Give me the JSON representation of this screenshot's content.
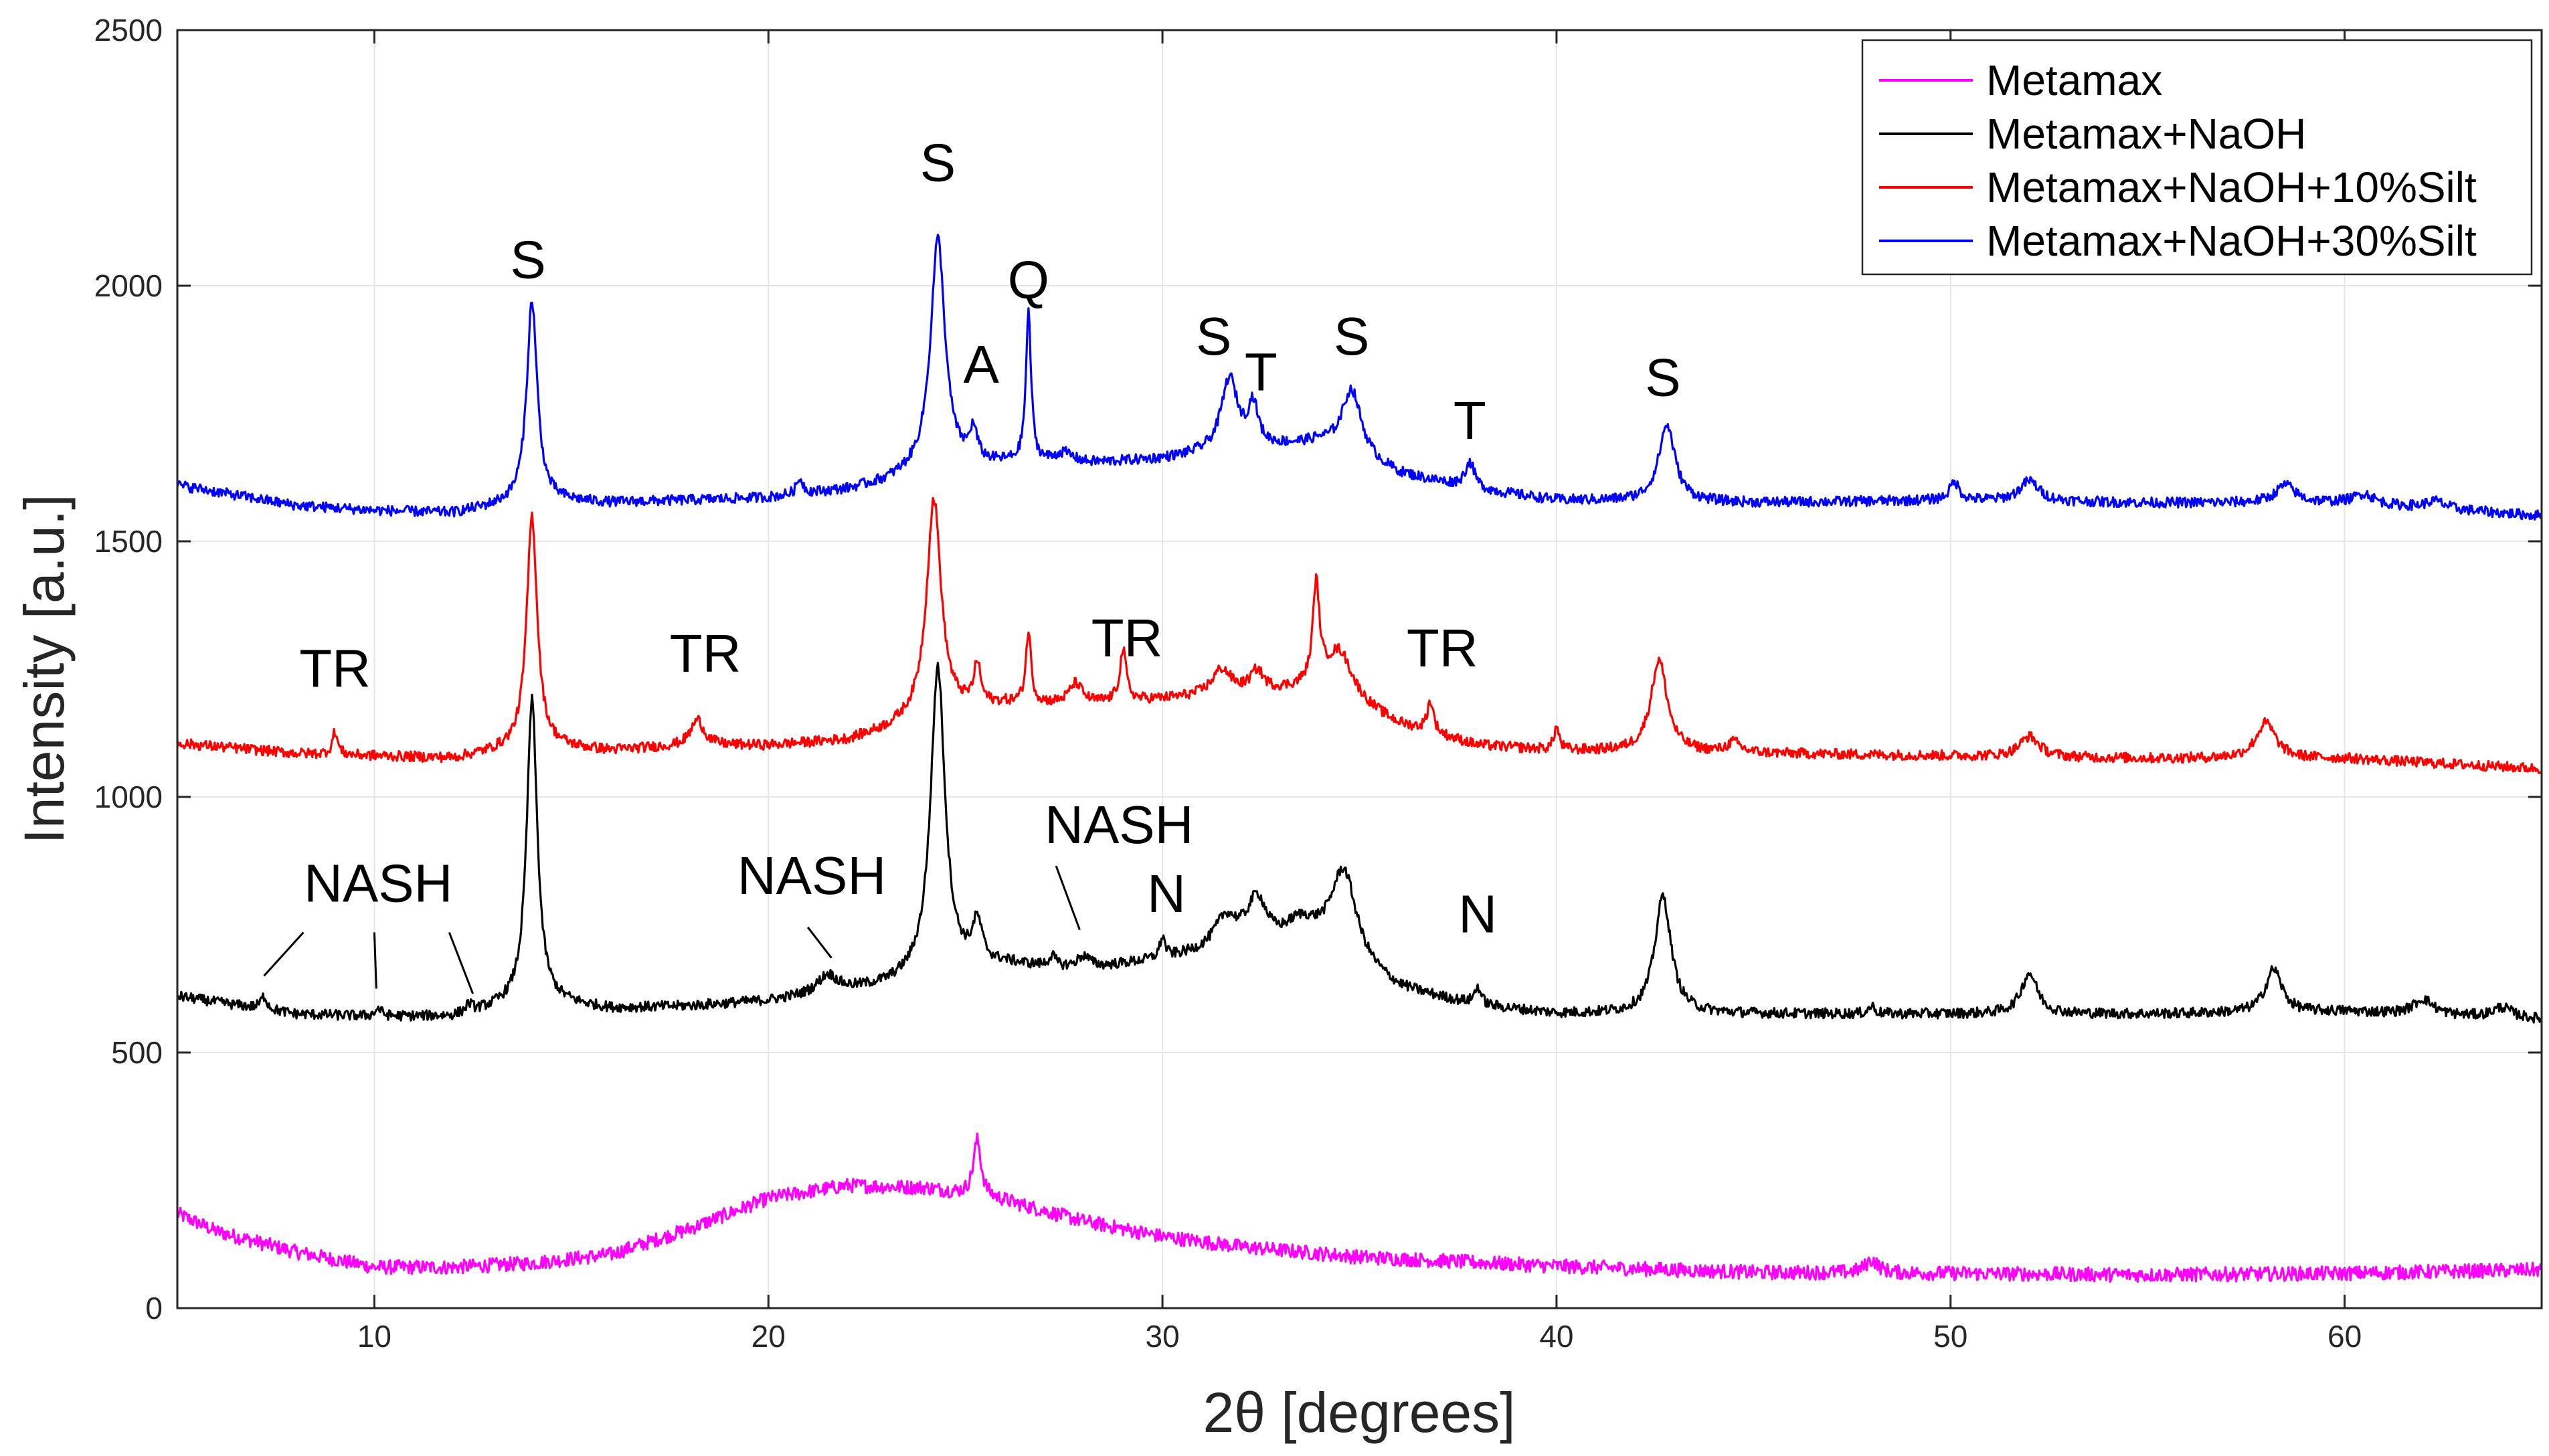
{
  "chart_data": {
    "type": "line",
    "title": "",
    "xlabel": "2θ [degrees]",
    "ylabel": "Intensity [a.u.]",
    "xlim": [
      5,
      65
    ],
    "ylim": [
      0,
      2500
    ],
    "xticks": [
      10,
      20,
      30,
      40,
      50,
      60
    ],
    "yticks": [
      0,
      500,
      1000,
      1500,
      2000,
      2500
    ],
    "grid": true,
    "legend_position": "top-right",
    "series": [
      {
        "name": "Metamax",
        "color": "#ff00ff",
        "baseline": [
          [
            5,
            185
          ],
          [
            6,
            150
          ],
          [
            8,
            110
          ],
          [
            10,
            80
          ],
          [
            12,
            80
          ],
          [
            14,
            88
          ],
          [
            16,
            105
          ],
          [
            18,
            155
          ],
          [
            20,
            215
          ],
          [
            22,
            240
          ],
          [
            24,
            235
          ],
          [
            26,
            210
          ],
          [
            28,
            170
          ],
          [
            30,
            140
          ],
          [
            32,
            120
          ],
          [
            35,
            100
          ],
          [
            40,
            82
          ],
          [
            45,
            70
          ],
          [
            50,
            68
          ],
          [
            55,
            65
          ],
          [
            60,
            68
          ],
          [
            65,
            75
          ]
        ],
        "peaks": [
          [
            25.3,
            110,
            0.12
          ],
          [
            48,
            25,
            0.2
          ]
        ],
        "noise": 14
      },
      {
        "name": "Metamax+NaOH",
        "color": "#000000",
        "baseline": [
          [
            5,
            610
          ],
          [
            8,
            575
          ],
          [
            10,
            570
          ],
          [
            12,
            570
          ],
          [
            14,
            600
          ],
          [
            16,
            585
          ],
          [
            18,
            590
          ],
          [
            20,
            600
          ],
          [
            22,
            620
          ],
          [
            23,
            630
          ],
          [
            24,
            650
          ],
          [
            26,
            670
          ],
          [
            28,
            660
          ],
          [
            30,
            680
          ],
          [
            32,
            700
          ],
          [
            34,
            690
          ],
          [
            36,
            620
          ],
          [
            38,
            590
          ],
          [
            40,
            575
          ],
          [
            45,
            575
          ],
          [
            50,
            575
          ],
          [
            55,
            575
          ],
          [
            60,
            580
          ],
          [
            65,
            565
          ]
        ],
        "peaks": [
          [
            7.2,
            25,
            0.1
          ],
          [
            10.1,
            15,
            0.1
          ],
          [
            12.4,
            15,
            0.1
          ],
          [
            14,
            590,
            0.16
          ],
          [
            21.5,
            35,
            0.3
          ],
          [
            24.3,
            600,
            0.22
          ],
          [
            25.3,
            80,
            0.15
          ],
          [
            27.2,
            20,
            0.1
          ],
          [
            28,
            25,
            0.2
          ],
          [
            30,
            40,
            0.08
          ],
          [
            31.6,
            60,
            0.35
          ],
          [
            32.4,
            90,
            0.3
          ],
          [
            33.5,
            50,
            0.5
          ],
          [
            34.6,
            180,
            0.4
          ],
          [
            38,
            35,
            0.1
          ],
          [
            42.7,
            230,
            0.25
          ],
          [
            48,
            15,
            0.1
          ],
          [
            52,
            80,
            0.25
          ],
          [
            58.2,
            85,
            0.25
          ],
          [
            62,
            30,
            0.3
          ],
          [
            64,
            20,
            0.3
          ]
        ],
        "noise": 10
      },
      {
        "name": "Metamax+NaOH+10%Silt",
        "color": "#ff0000",
        "baseline": [
          [
            5,
            1105
          ],
          [
            8,
            1085
          ],
          [
            10,
            1080
          ],
          [
            12,
            1075
          ],
          [
            14,
            1100
          ],
          [
            16,
            1090
          ],
          [
            18,
            1100
          ],
          [
            20,
            1100
          ],
          [
            22,
            1110
          ],
          [
            23,
            1130
          ],
          [
            24,
            1160
          ],
          [
            26,
            1180
          ],
          [
            28,
            1180
          ],
          [
            30,
            1190
          ],
          [
            32,
            1200
          ],
          [
            34,
            1210
          ],
          [
            36,
            1140
          ],
          [
            38,
            1100
          ],
          [
            40,
            1090
          ],
          [
            45,
            1085
          ],
          [
            50,
            1080
          ],
          [
            55,
            1075
          ],
          [
            60,
            1075
          ],
          [
            65,
            1055
          ]
        ],
        "peaks": [
          [
            9,
            45,
            0.08
          ],
          [
            14,
            450,
            0.16
          ],
          [
            18.2,
            50,
            0.2
          ],
          [
            24.2,
            420,
            0.22
          ],
          [
            25.3,
            80,
            0.1
          ],
          [
            26.6,
            140,
            0.08
          ],
          [
            27.8,
            40,
            0.2
          ],
          [
            29,
            100,
            0.1
          ],
          [
            31.5,
            50,
            0.3
          ],
          [
            32.4,
            40,
            0.2
          ],
          [
            33.9,
            190,
            0.1
          ],
          [
            34.5,
            90,
            0.4
          ],
          [
            36.8,
            60,
            0.1
          ],
          [
            40,
            45,
            0.08
          ],
          [
            42.6,
            180,
            0.25
          ],
          [
            44.5,
            20,
            0.2
          ],
          [
            52,
            40,
            0.3
          ],
          [
            58,
            70,
            0.3
          ]
        ],
        "noise": 10
      },
      {
        "name": "Metamax+NaOH+30%Silt",
        "color": "#0000ff",
        "baseline": [
          [
            5,
            1610
          ],
          [
            8,
            1570
          ],
          [
            10,
            1560
          ],
          [
            12,
            1555
          ],
          [
            14,
            1580
          ],
          [
            16,
            1575
          ],
          [
            18,
            1580
          ],
          [
            20,
            1585
          ],
          [
            22,
            1600
          ],
          [
            23,
            1615
          ],
          [
            24,
            1640
          ],
          [
            26,
            1650
          ],
          [
            28,
            1650
          ],
          [
            30,
            1660
          ],
          [
            32,
            1680
          ],
          [
            34,
            1690
          ],
          [
            36,
            1630
          ],
          [
            38,
            1600
          ],
          [
            40,
            1580
          ],
          [
            45,
            1575
          ],
          [
            50,
            1580
          ],
          [
            55,
            1575
          ],
          [
            60,
            1575
          ],
          [
            65,
            1550
          ]
        ],
        "peaks": [
          [
            14,
            390,
            0.16
          ],
          [
            20.8,
            30,
            0.1
          ],
          [
            24.3,
            450,
            0.22
          ],
          [
            25.2,
            60,
            0.12
          ],
          [
            26.6,
            290,
            0.08
          ],
          [
            27.5,
            20,
            0.3
          ],
          [
            31.7,
            140,
            0.25
          ],
          [
            32.3,
            80,
            0.15
          ],
          [
            34.8,
            130,
            0.3
          ],
          [
            37.8,
            50,
            0.15
          ],
          [
            42.8,
            150,
            0.25
          ],
          [
            50.1,
            35,
            0.15
          ],
          [
            52,
            40,
            0.3
          ],
          [
            58.5,
            35,
            0.3
          ],
          [
            60.5,
            20,
            0.3
          ],
          [
            62.3,
            15,
            0.3
          ]
        ],
        "noise": 10
      }
    ],
    "annotations": [
      {
        "text": "S",
        "x": 13.9,
        "y": 2015
      },
      {
        "text": "S",
        "x": 24.3,
        "y": 2205
      },
      {
        "text": "Q",
        "x": 26.6,
        "y": 1975
      },
      {
        "text": "A",
        "x": 25.4,
        "y": 1810
      },
      {
        "text": "S",
        "x": 31.3,
        "y": 1865
      },
      {
        "text": "T",
        "x": 32.5,
        "y": 1795
      },
      {
        "text": "S",
        "x": 34.8,
        "y": 1865
      },
      {
        "text": "T",
        "x": 37.8,
        "y": 1700
      },
      {
        "text": "S",
        "x": 42.7,
        "y": 1785
      },
      {
        "text": "TR",
        "x": 9.0,
        "y": 1215
      },
      {
        "text": "TR",
        "x": 18.4,
        "y": 1245
      },
      {
        "text": "TR",
        "x": 29.1,
        "y": 1275
      },
      {
        "text": "TR",
        "x": 37.1,
        "y": 1255
      },
      {
        "text": "NASH",
        "x": 10.1,
        "y": 795
      },
      {
        "text": "NASH",
        "x": 21.1,
        "y": 810
      },
      {
        "text": "NASH",
        "x": 28.9,
        "y": 910
      },
      {
        "text": "N",
        "x": 30.1,
        "y": 775
      },
      {
        "text": "N",
        "x": 38.0,
        "y": 735
      }
    ],
    "annotation_leaders": [
      [
        [
          8.2,
          735
        ],
        [
          7.2,
          650
        ]
      ],
      [
        [
          10.0,
          735
        ],
        [
          10.05,
          625
        ]
      ],
      [
        [
          11.9,
          735
        ],
        [
          12.5,
          615
        ]
      ],
      [
        [
          21.0,
          745
        ],
        [
          21.6,
          685
        ]
      ],
      [
        [
          27.3,
          865
        ],
        [
          27.9,
          740
        ]
      ]
    ]
  }
}
